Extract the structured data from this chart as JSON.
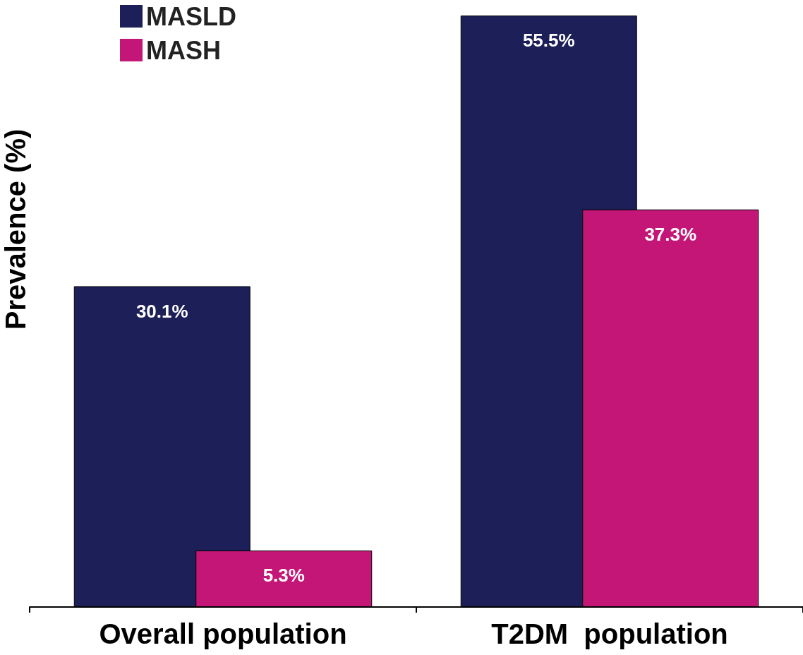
{
  "chart_data": {
    "type": "bar",
    "ylabel": "Prevalence (%)",
    "categories": [
      "Overall population",
      "T2DM  population"
    ],
    "series": [
      {
        "name": "MASLD",
        "color": "#1c1f58",
        "values": [
          30.1,
          55.5
        ],
        "value_labels": [
          "30.1%",
          "55.5%"
        ]
      },
      {
        "name": "MASH",
        "color": "#c41677",
        "values": [
          5.3,
          37.3
        ],
        "value_labels": [
          "5.3%",
          "37.3%"
        ]
      }
    ],
    "legend": "top left",
    "tick_labels": "x"
  }
}
